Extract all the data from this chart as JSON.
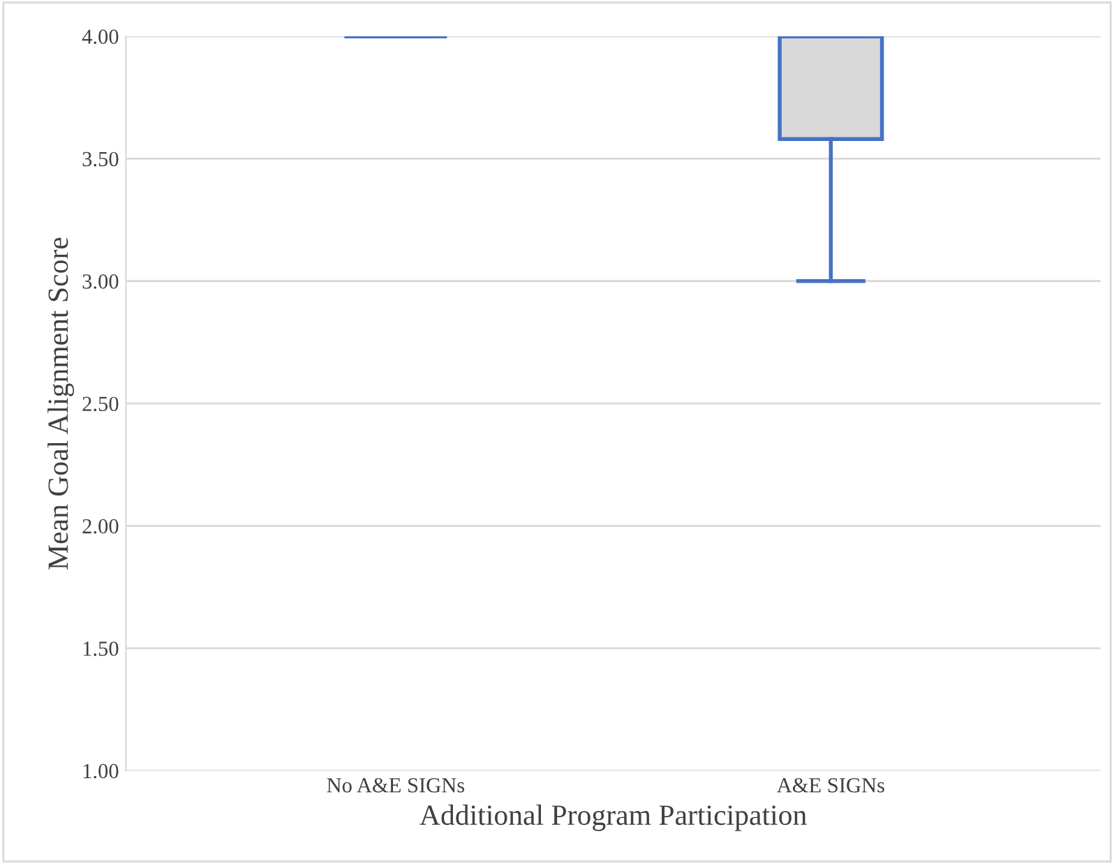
{
  "chart_data": {
    "type": "box",
    "xlabel": "Additional Program Participation",
    "ylabel": "Mean Goal Alignment Score",
    "categories": [
      "No A&E SIGNs",
      "A&E SIGNs"
    ],
    "boxes": [
      {
        "low": 4.0,
        "q1": 4.0,
        "median": 4.0,
        "q3": 4.0,
        "high": 4.0
      },
      {
        "low": 3.0,
        "q1": 3.58,
        "median": 4.0,
        "q3": 4.0,
        "high": 4.0
      }
    ],
    "color": "#4472c4",
    "ylim": [
      1.0,
      4.0
    ],
    "yticks": [
      {
        "value": 1.0,
        "label": "1.00"
      },
      {
        "value": 1.5,
        "label": "1.50"
      },
      {
        "value": 2.0,
        "label": "2.00"
      },
      {
        "value": 2.5,
        "label": "2.50"
      },
      {
        "value": 3.0,
        "label": "3.00"
      },
      {
        "value": 3.5,
        "label": "3.50"
      },
      {
        "value": 4.0,
        "label": "4.00"
      }
    ],
    "grid": "y"
  }
}
